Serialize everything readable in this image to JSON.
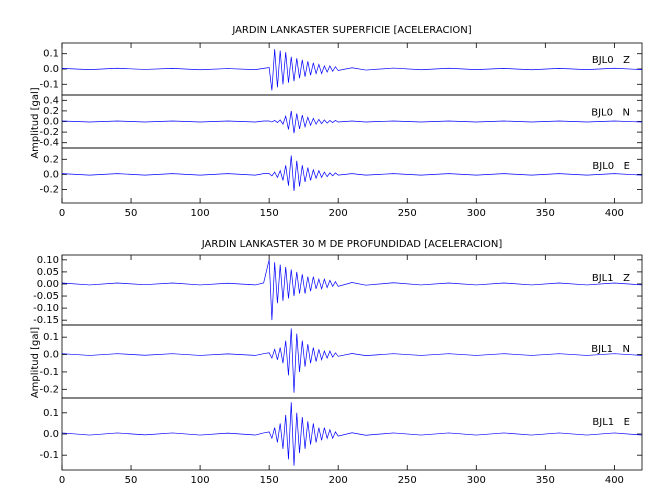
{
  "chart_data": [
    {
      "type": "line",
      "title": "JARDIN LANKASTER SUPERFICIE [ACELERACION]",
      "y_label": "Amplitud [gal]",
      "xlim": [
        0,
        420
      ],
      "xticks": [
        0,
        50,
        100,
        150,
        200,
        250,
        300,
        350,
        400
      ],
      "x": [
        0,
        20,
        40,
        60,
        80,
        100,
        120,
        140,
        146,
        150,
        152,
        154,
        156,
        158,
        160,
        162,
        164,
        166,
        168,
        170,
        172,
        174,
        176,
        178,
        180,
        182,
        184,
        186,
        188,
        190,
        192,
        194,
        196,
        198,
        200,
        210,
        220,
        240,
        260,
        280,
        300,
        320,
        340,
        360,
        380,
        400,
        420
      ],
      "panels": [
        {
          "name": "BJL0   Z",
          "color": "#0000ff",
          "ylim": [
            -0.17,
            0.17
          ],
          "yticks": [
            0.1,
            {
              "value": 0,
              "label": "0.0"
            },
            -0.1
          ],
          "values": [
            0.004,
            -0.004,
            0.005,
            -0.003,
            0.004,
            -0.005,
            0.003,
            -0.004,
            0.004,
            0.01,
            -0.14,
            0.13,
            -0.12,
            0.12,
            -0.1,
            0.11,
            -0.09,
            0.08,
            -0.08,
            0.07,
            -0.06,
            0.06,
            -0.05,
            0.05,
            -0.04,
            0.04,
            -0.03,
            0.03,
            -0.03,
            0.02,
            -0.02,
            0.02,
            -0.015,
            0.015,
            -0.01,
            0.008,
            -0.007,
            0.006,
            -0.005,
            0.005,
            -0.004,
            0.004,
            -0.005,
            0.004,
            -0.004,
            0.005,
            -0.004
          ]
        },
        {
          "name": "BJL0   N",
          "color": "#0000ff",
          "ylim": [
            -0.5,
            0.5
          ],
          "yticks": [
            0.4,
            0.2,
            {
              "value": 0,
              "label": "0.0"
            },
            -0.2,
            -0.4
          ],
          "values": [
            0.01,
            -0.01,
            0.01,
            -0.01,
            0.01,
            -0.01,
            0.01,
            -0.01,
            0.01,
            0.01,
            -0.01,
            0.02,
            -0.02,
            0.03,
            -0.05,
            0.1,
            -0.15,
            0.2,
            -0.22,
            0.15,
            -0.14,
            0.12,
            -0.1,
            0.08,
            -0.07,
            0.06,
            -0.05,
            0.04,
            -0.04,
            0.03,
            -0.03,
            0.02,
            -0.02,
            0.02,
            -0.01,
            0.01,
            -0.01,
            0.01,
            -0.01,
            0.01,
            -0.01,
            0.01,
            -0.01,
            0.01,
            -0.01,
            0.01,
            -0.01
          ]
        },
        {
          "name": "BJL0   E",
          "color": "#0000ff",
          "ylim": [
            -0.38,
            0.35
          ],
          "yticks": [
            0.2,
            {
              "value": 0,
              "label": "0.0"
            },
            -0.2
          ],
          "values": [
            0.01,
            -0.01,
            0.01,
            -0.01,
            0.01,
            -0.01,
            0.01,
            -0.01,
            0.01,
            0.01,
            -0.02,
            0.03,
            -0.04,
            0.05,
            -0.08,
            0.12,
            -0.15,
            0.25,
            -0.22,
            0.18,
            -0.16,
            0.12,
            -0.1,
            0.09,
            -0.08,
            0.06,
            -0.05,
            0.05,
            -0.04,
            0.03,
            -0.03,
            0.02,
            -0.02,
            0.02,
            -0.01,
            0.01,
            -0.01,
            0.01,
            -0.01,
            0.01,
            -0.01,
            0.01,
            -0.01,
            0.01,
            -0.01,
            0.01,
            -0.01
          ]
        }
      ]
    },
    {
      "type": "line",
      "title": "JARDIN LANKASTER 30 M DE PROFUNDIDAD [ACELERACION]",
      "y_label": "Amplitud [gal]",
      "xlim": [
        0,
        420
      ],
      "xticks": [
        0,
        50,
        100,
        150,
        200,
        250,
        300,
        350,
        400
      ],
      "x": [
        0,
        20,
        40,
        60,
        80,
        100,
        120,
        140,
        146,
        150,
        152,
        154,
        156,
        158,
        160,
        162,
        164,
        166,
        168,
        170,
        172,
        174,
        176,
        178,
        180,
        182,
        184,
        186,
        188,
        190,
        192,
        194,
        196,
        198,
        200,
        210,
        220,
        240,
        260,
        280,
        300,
        320,
        340,
        360,
        380,
        400,
        420
      ],
      "panels": [
        {
          "name": "BJL1   Z",
          "color": "#0000ff",
          "ylim": [
            -0.17,
            0.12
          ],
          "yticks": [
            {
              "value": 0.1,
              "label": "0.10"
            },
            0.05,
            {
              "value": 0,
              "label": "0.00"
            },
            -0.05,
            {
              "value": -0.1,
              "label": "-0.10"
            },
            -0.15
          ],
          "values": [
            0.004,
            -0.004,
            0.004,
            -0.003,
            0.004,
            -0.004,
            0.003,
            -0.004,
            0.004,
            0.1,
            -0.15,
            0.09,
            -0.08,
            0.08,
            -0.07,
            0.07,
            -0.06,
            0.06,
            -0.05,
            0.05,
            -0.04,
            0.04,
            -0.04,
            0.03,
            -0.03,
            0.03,
            -0.02,
            0.02,
            -0.02,
            0.02,
            -0.015,
            0.015,
            -0.01,
            0.01,
            -0.01,
            0.006,
            -0.005,
            0.005,
            -0.004,
            0.004,
            -0.004,
            0.004,
            -0.004,
            0.004,
            -0.004,
            0.004,
            -0.004
          ]
        },
        {
          "name": "BJL1   N",
          "color": "#0000ff",
          "ylim": [
            -0.25,
            0.17
          ],
          "yticks": [
            0.1,
            {
              "value": 0,
              "label": "0.0"
            },
            -0.1,
            -0.2
          ],
          "values": [
            0.005,
            -0.005,
            0.005,
            -0.004,
            0.005,
            -0.005,
            0.004,
            -0.005,
            0.005,
            0.01,
            -0.02,
            0.03,
            -0.03,
            0.04,
            -0.05,
            0.08,
            -0.12,
            0.15,
            -0.22,
            0.12,
            -0.1,
            0.08,
            -0.07,
            0.06,
            -0.05,
            0.04,
            -0.04,
            0.03,
            -0.03,
            0.02,
            -0.02,
            0.02,
            -0.015,
            0.01,
            -0.01,
            0.006,
            -0.006,
            0.005,
            -0.005,
            0.005,
            -0.005,
            0.005,
            -0.005,
            0.005,
            -0.005,
            0.005,
            -0.005
          ]
        },
        {
          "name": "BJL1   E",
          "color": "#0000ff",
          "ylim": [
            -0.17,
            0.17
          ],
          "yticks": [
            0.1,
            {
              "value": 0,
              "label": "0.0"
            },
            -0.1
          ],
          "values": [
            0.005,
            -0.005,
            0.005,
            -0.004,
            0.005,
            -0.005,
            0.004,
            -0.005,
            0.005,
            0.01,
            -0.02,
            0.03,
            -0.04,
            0.05,
            -0.07,
            0.09,
            -0.12,
            0.15,
            -0.15,
            0.1,
            -0.09,
            0.08,
            -0.07,
            0.06,
            -0.05,
            0.05,
            -0.04,
            0.03,
            -0.03,
            0.03,
            -0.02,
            0.02,
            -0.02,
            0.01,
            -0.01,
            0.006,
            -0.006,
            0.005,
            -0.005,
            0.005,
            -0.005,
            0.005,
            -0.005,
            0.005,
            -0.005,
            0.005,
            -0.005
          ]
        }
      ]
    }
  ]
}
